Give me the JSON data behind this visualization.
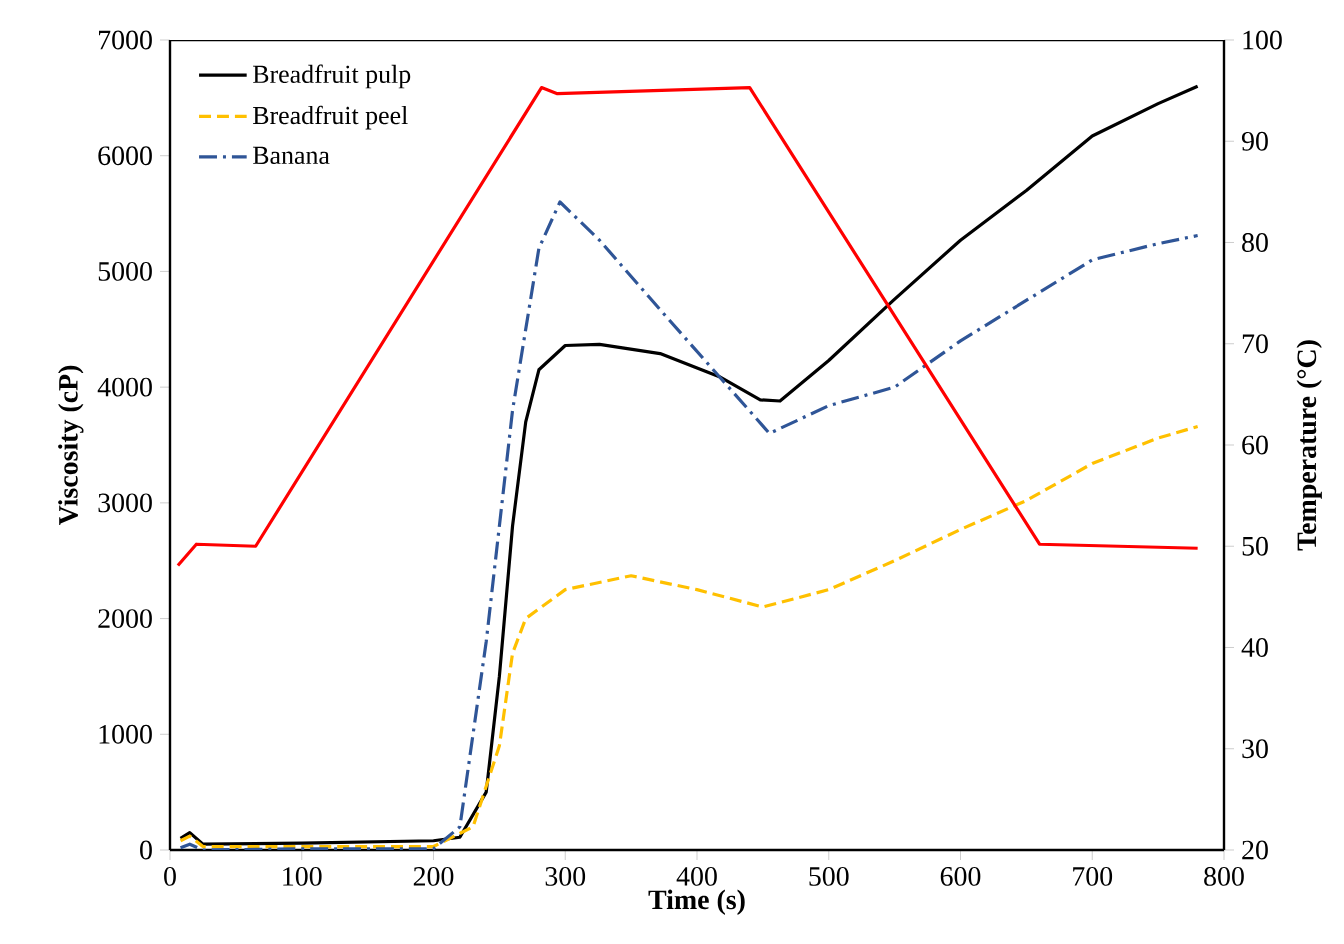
{
  "chart_data": {
    "type": "line",
    "xlabel": "Time (s)",
    "ylabel": "Viscosity (cP)",
    "y2label": "Temperature (°C)",
    "xlim": [
      0,
      800
    ],
    "xticks": [
      0,
      100,
      200,
      300,
      400,
      500,
      600,
      700,
      800
    ],
    "ylim": [
      0,
      7000
    ],
    "yticks": [
      0,
      1000,
      2000,
      3000,
      4000,
      5000,
      6000,
      7000
    ],
    "y2lim": [
      20,
      100
    ],
    "y2ticks": [
      20,
      30,
      40,
      50,
      60,
      70,
      80,
      90,
      100
    ],
    "grid": false,
    "legend": "top left",
    "marker": "none",
    "series": [
      {
        "name": "Breadfruit pulp",
        "color": "#000000",
        "line_style": "solid",
        "x": [
          8,
          15,
          25,
          100,
          200,
          220,
          240,
          250,
          260,
          270,
          280,
          300,
          326,
          372,
          417,
          448,
          463,
          500,
          549,
          600,
          650,
          700,
          750,
          780
        ],
        "values": [
          100,
          150,
          50,
          60,
          80,
          110,
          500,
          1500,
          2800,
          3700,
          4150,
          4360,
          4370,
          4290,
          4090,
          3890,
          3880,
          4230,
          4750,
          5270,
          5700,
          6170,
          6450,
          6600
        ]
      },
      {
        "name": "Breadfruit peel",
        "color": "#ffc000",
        "line_style": "dashed",
        "x": [
          8,
          15,
          25,
          100,
          200,
          230,
          250,
          260,
          270,
          300,
          350,
          400,
          450,
          500,
          550,
          600,
          650,
          700,
          750,
          780
        ],
        "values": [
          80,
          120,
          30,
          30,
          30,
          200,
          900,
          1700,
          2000,
          2250,
          2370,
          2250,
          2100,
          2250,
          2500,
          2770,
          3020,
          3340,
          3560,
          3660
        ]
      },
      {
        "name": "Banana",
        "color": "#2f5597",
        "line_style": "dashdot",
        "x": [
          8,
          15,
          25,
          100,
          200,
          220,
          240,
          260,
          280,
          296,
          326,
          372,
          417,
          455,
          500,
          550,
          600,
          650,
          700,
          750,
          780
        ],
        "values": [
          20,
          50,
          0,
          10,
          10,
          200,
          1800,
          3800,
          5200,
          5600,
          5270,
          4670,
          4090,
          3600,
          3840,
          4000,
          4400,
          4750,
          5100,
          5240,
          5310
        ]
      },
      {
        "color": "#ff0000",
        "line_style": "solid",
        "axis": "y2",
        "x": [
          6,
          20,
          65,
          282,
          294,
          440,
          660,
          780
        ],
        "values": [
          48.1,
          50.2,
          50,
          95.3,
          94.7,
          95.3,
          50.2,
          49.8
        ]
      }
    ]
  }
}
